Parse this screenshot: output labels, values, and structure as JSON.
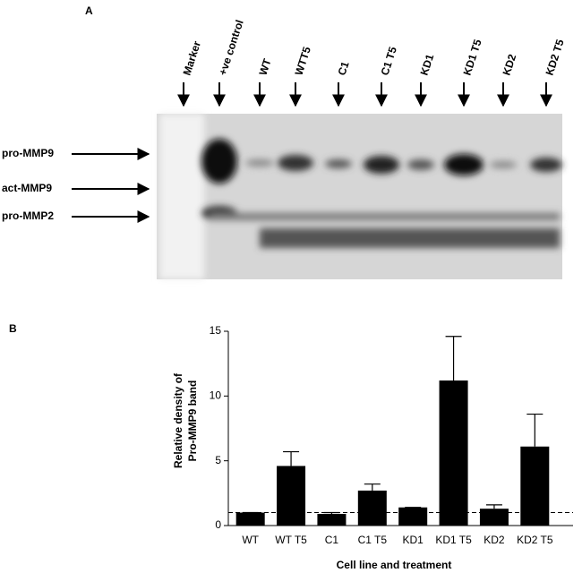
{
  "gel": {
    "panel_label": "A",
    "lanes": [
      "Marker",
      "+ve control",
      "WT",
      "WTT5",
      "C1",
      "C1 T5",
      "KD1",
      "KD1 T5",
      "KD2",
      "KD2 T5"
    ],
    "bands": [
      "pro-MMP9",
      "act-MMP9",
      "pro-MMP2"
    ]
  },
  "chart_data": {
    "type": "bar",
    "panel_label": "B",
    "categories": [
      "WT",
      "WT T5",
      "C1",
      "C1 T5",
      "KD1",
      "KD1 T5",
      "KD2",
      "KD2 T5"
    ],
    "values": [
      1,
      4.6,
      0.9,
      2.7,
      1.4,
      11.2,
      1.3,
      6.1
    ],
    "errors": [
      0,
      1.1,
      0.1,
      0.5,
      0,
      3.4,
      0.3,
      2.5
    ],
    "color": "#000000",
    "reference_line": 1,
    "ylabel": [
      "Relative density of",
      "Pro-MMP9 band"
    ],
    "xlabel": "Cell line and treatment",
    "ylim": [
      0,
      15
    ],
    "yticks": [
      0,
      5,
      10,
      15
    ]
  }
}
